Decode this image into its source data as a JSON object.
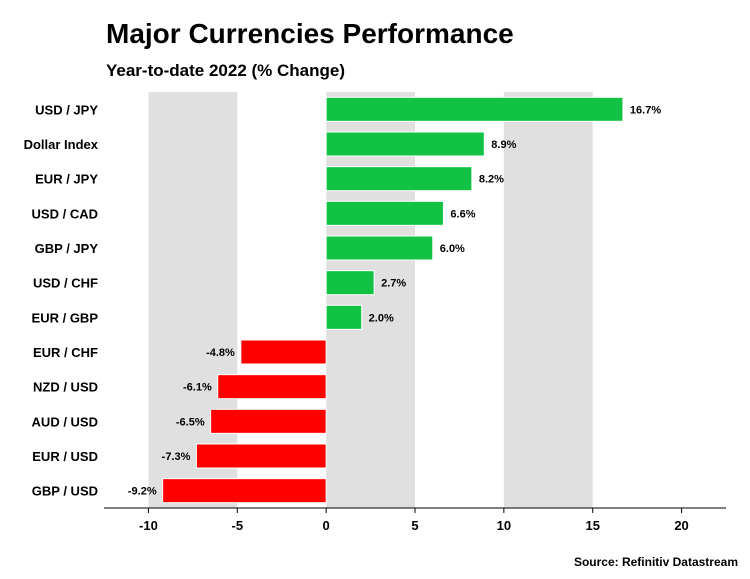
{
  "chart_data": {
    "type": "bar",
    "orientation": "horizontal",
    "title": "Major Currencies Performance",
    "subtitle": "Year-to-date 2022 (% Change)",
    "categories": [
      "USD / JPY",
      "Dollar Index",
      "EUR / JPY",
      "USD / CAD",
      "GBP / JPY",
      "USD / CHF",
      "EUR / GBP",
      "EUR / CHF",
      "NZD / USD",
      "AUD / USD",
      "EUR / USD",
      "GBP / USD"
    ],
    "values": [
      16.7,
      8.9,
      8.2,
      6.6,
      6.0,
      2.7,
      2.0,
      -4.8,
      -6.1,
      -6.5,
      -7.3,
      -9.2
    ],
    "data_labels": [
      "16.7%",
      "8.9%",
      "8.2%",
      "6.6%",
      "6.0%",
      "2.7%",
      "2.0%",
      "-4.8%",
      "-6.1%",
      "-6.5%",
      "-7.3%",
      "-9.2%"
    ],
    "xlim": [
      -12.5,
      22.5
    ],
    "xticks": [
      -10,
      -5,
      0,
      5,
      10,
      15,
      20
    ],
    "xtick_labels": [
      "-10",
      "-5",
      "0",
      "5",
      "10",
      "15",
      "20"
    ],
    "grid": "alternating vertical bands",
    "colors": {
      "positive": "#12c244",
      "negative": "#fe0000",
      "band": "#e0e0e0"
    },
    "source": "Source: Refinitiv Datastream"
  }
}
